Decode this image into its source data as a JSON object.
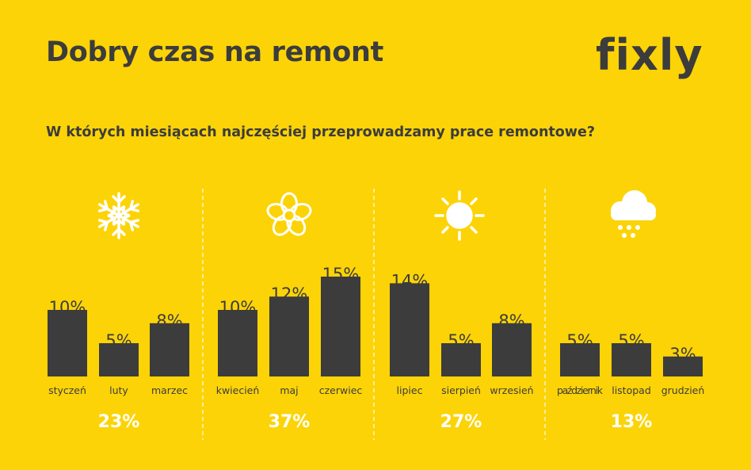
{
  "header": {
    "title": "Dobry czas na remont",
    "logo": "fixly",
    "subtitle": "W których miesiącach najczęściej przeprowadzamy prace remontowe?"
  },
  "colors": {
    "background": "#FCD307",
    "bar": "#3C3C3C",
    "text": "#3C3C3C",
    "icon": "#FFFFFF",
    "total": "#FFFFFF"
  },
  "chart_data": {
    "type": "bar",
    "categories": [
      "styczeń",
      "luty",
      "marzec",
      "kwiecień",
      "maj",
      "czerwiec",
      "lipiec",
      "sierpień",
      "wrzesień",
      "październik",
      "listopad",
      "grudzień"
    ],
    "values": [
      10,
      5,
      8,
      10,
      12,
      15,
      14,
      5,
      8,
      5,
      5,
      3
    ],
    "value_labels": [
      "10%",
      "5%",
      "8%",
      "10%",
      "12%",
      "15%",
      "14%",
      "5%",
      "8%",
      "5%",
      "5%",
      "3%"
    ],
    "unit": "%",
    "groups": [
      {
        "icon": "snowflake-icon",
        "months": [
          0,
          1,
          2
        ],
        "total": "23%"
      },
      {
        "icon": "flower-icon",
        "months": [
          3,
          4,
          5
        ],
        "total": "37%"
      },
      {
        "icon": "sun-icon",
        "months": [
          6,
          7,
          8
        ],
        "total": "27%"
      },
      {
        "icon": "rain-cloud-icon",
        "months": [
          9,
          10,
          11
        ],
        "total": "13%"
      }
    ],
    "title": "W których miesiącach najczęściej przeprowadzamy prace remontowe?",
    "xlabel": "",
    "ylabel": "",
    "ylim": [
      0,
      15
    ],
    "grid": false,
    "legend": "none"
  }
}
